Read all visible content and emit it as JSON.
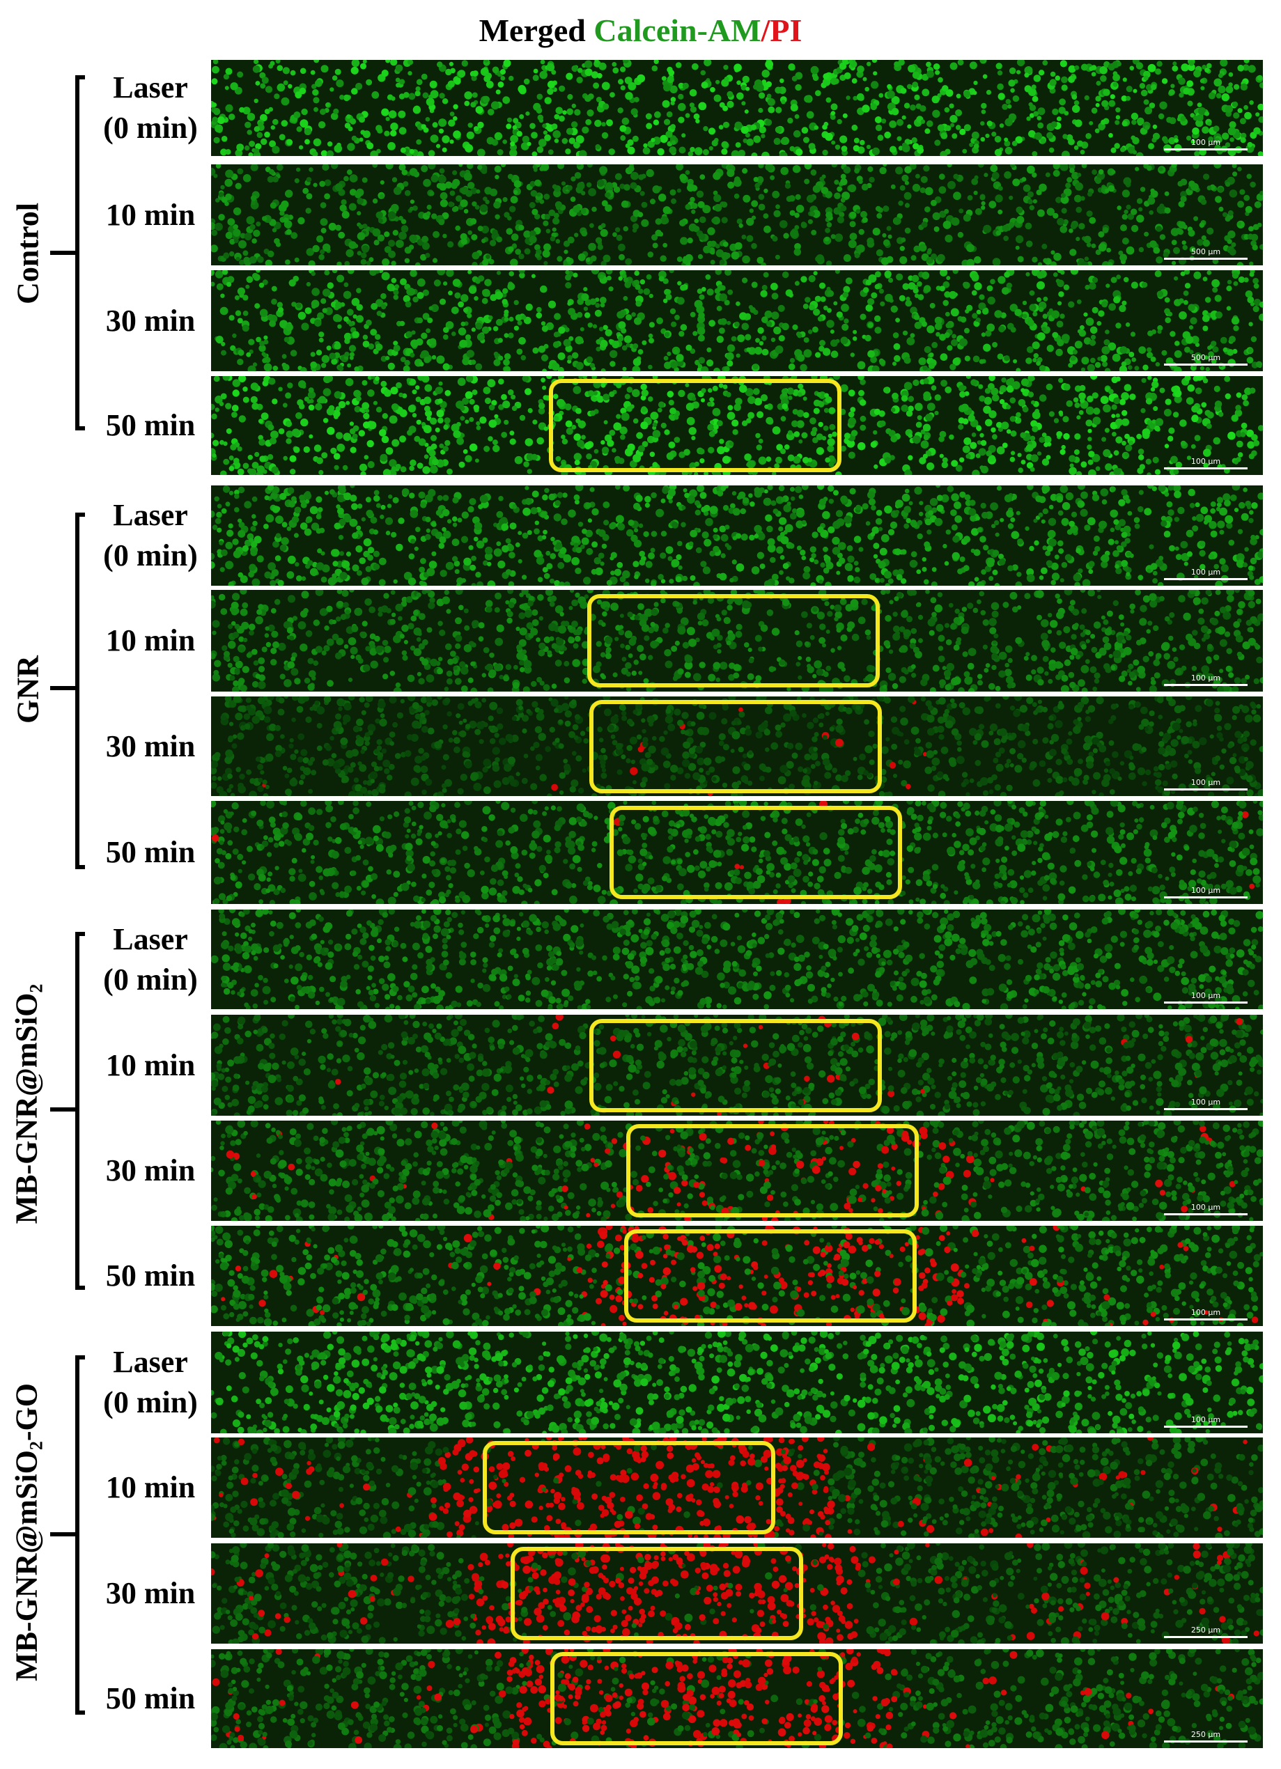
{
  "title": {
    "prefix": "Merged",
    "calcein": "Calcein-AM",
    "slash": "/",
    "pi": "PI"
  },
  "colors": {
    "live_cells": "#2bd32b",
    "dead_cells": "#e0141a",
    "roi_box": "#f5e820",
    "background": "#0c2a08"
  },
  "groups": [
    {
      "name": "Control",
      "rows": [
        {
          "label_line1": "Laser",
          "label_line2": "(0 min)",
          "scale": "100 μm",
          "roi": false,
          "dead": 0.0,
          "brightness": 0.95
        },
        {
          "label_line1": "10 min",
          "label_line2": "",
          "scale": "500 μm",
          "roi": false,
          "dead": 0.0,
          "brightness": 0.7
        },
        {
          "label_line1": "30 min",
          "label_line2": "",
          "scale": "500 μm",
          "roi": false,
          "dead": 0.0,
          "brightness": 0.85
        },
        {
          "label_line1": "50 min",
          "label_line2": "",
          "scale": "100 μm",
          "roi": true,
          "dead": 0.0,
          "brightness": 0.95
        }
      ]
    },
    {
      "name": "GNR",
      "rows": [
        {
          "label_line1": "Laser",
          "label_line2": "(0 min)",
          "scale": "100 μm",
          "roi": false,
          "dead": 0.0,
          "brightness": 0.8
        },
        {
          "label_line1": "10 min",
          "label_line2": "",
          "scale": "100 μm",
          "roi": true,
          "dead": 0.0,
          "brightness": 0.65
        },
        {
          "label_line1": "30 min",
          "label_line2": "",
          "scale": "100 μm",
          "roi": true,
          "dead": 0.03,
          "brightness": 0.45
        },
        {
          "label_line1": "50 min",
          "label_line2": "",
          "scale": "100 μm",
          "roi": true,
          "dead": 0.02,
          "brightness": 0.65
        }
      ]
    },
    {
      "name_main": "MB-GNR@mSiO",
      "name_sub": "2",
      "name_suffix": "",
      "rows": [
        {
          "label_line1": "Laser",
          "label_line2": "(0 min)",
          "scale": "100 μm",
          "roi": false,
          "dead": 0.0,
          "brightness": 0.65
        },
        {
          "label_line1": "10 min",
          "label_line2": "",
          "scale": "100 μm",
          "roi": true,
          "dead": 0.04,
          "brightness": 0.55
        },
        {
          "label_line1": "30 min",
          "label_line2": "",
          "scale": "100 μm",
          "roi": true,
          "dead": 0.25,
          "brightness": 0.6
        },
        {
          "label_line1": "50 min",
          "label_line2": "",
          "scale": "100 μm",
          "roi": true,
          "dead": 0.5,
          "brightness": 0.65
        }
      ]
    },
    {
      "name_main": "MB-GNR@mSiO",
      "name_sub": "2",
      "name_suffix": "-GO",
      "rows": [
        {
          "label_line1": "Laser",
          "label_line2": "(0 min)",
          "scale": "100 μm",
          "roi": false,
          "dead": 0.0,
          "brightness": 0.85
        },
        {
          "label_line1": "10 min",
          "label_line2": "",
          "scale": "",
          "roi": true,
          "dead": 0.9,
          "brightness": 0.5
        },
        {
          "label_line1": "30 min",
          "label_line2": "",
          "scale": "250 μm",
          "roi": true,
          "dead": 0.85,
          "brightness": 0.5
        },
        {
          "label_line1": "50 min",
          "label_line2": "",
          "scale": "250 μm",
          "roi": true,
          "dead": 0.75,
          "brightness": 0.55
        }
      ]
    }
  ]
}
